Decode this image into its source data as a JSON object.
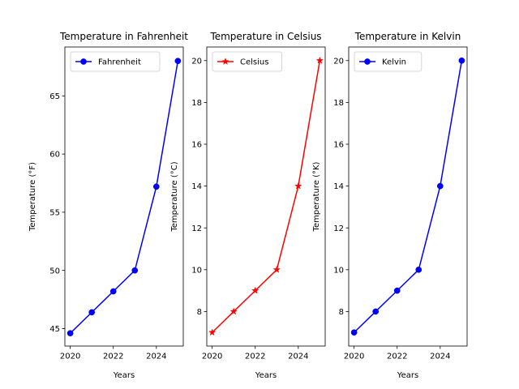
{
  "chart_data": [
    {
      "type": "line",
      "title": "Temperature in Fahrenheit",
      "xlabel": "Years",
      "ylabel": "Temperature (°F)",
      "x": [
        2020,
        2021,
        2022,
        2023,
        2024,
        2025
      ],
      "xlim": [
        2019.75,
        2025.25
      ],
      "ylim": [
        43.5,
        69.2
      ],
      "xticks": [
        2020,
        2022,
        2024
      ],
      "yticks": [
        45,
        50,
        55,
        60,
        65
      ],
      "legend": "top-left",
      "grid": false,
      "series": [
        {
          "name": "Fahrenheit",
          "values": [
            44.6,
            46.4,
            48.2,
            50.0,
            57.2,
            68.0
          ],
          "color": "#0000ff",
          "marker": "circle"
        }
      ]
    },
    {
      "type": "line",
      "title": "Temperature in Celsius",
      "xlabel": "Years",
      "ylabel": "Temperature (°C)",
      "x": [
        2020,
        2021,
        2022,
        2023,
        2024,
        2025
      ],
      "xlim": [
        2019.75,
        2025.25
      ],
      "ylim": [
        6.35,
        20.65
      ],
      "xticks": [
        2020,
        2022,
        2024
      ],
      "yticks": [
        8,
        10,
        12,
        14,
        16,
        18,
        20
      ],
      "legend": "top-left",
      "grid": false,
      "series": [
        {
          "name": "Celsius",
          "values": [
            7,
            8,
            9,
            10,
            14,
            20
          ],
          "color": "#ff0000",
          "marker": "star"
        }
      ]
    },
    {
      "type": "line",
      "title": "Temperature in Kelvin",
      "xlabel": "Years",
      "ylabel": "Temperature (°K)",
      "x": [
        2020,
        2021,
        2022,
        2023,
        2024,
        2025
      ],
      "xlim": [
        2019.75,
        2025.25
      ],
      "ylim": [
        6.35,
        20.65
      ],
      "xticks": [
        2020,
        2022,
        2024
      ],
      "yticks": [
        8,
        10,
        12,
        14,
        16,
        18,
        20
      ],
      "legend": "top-left",
      "grid": false,
      "series": [
        {
          "name": "Kelvin",
          "values": [
            7,
            8,
            9,
            10,
            14,
            20
          ],
          "color": "#0000ff",
          "marker": "circle"
        }
      ]
    }
  ]
}
